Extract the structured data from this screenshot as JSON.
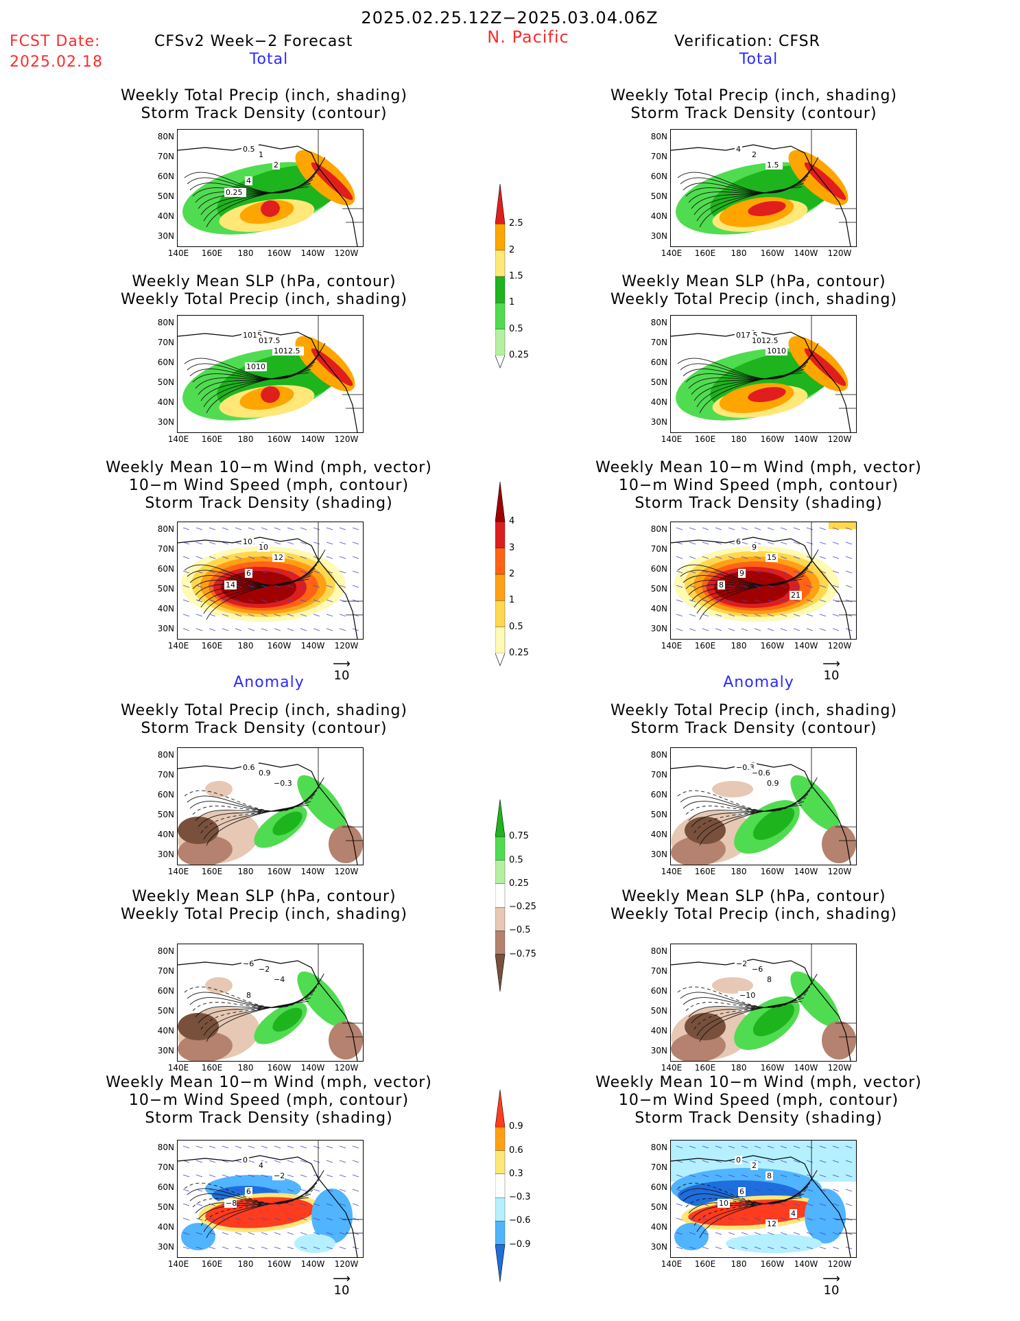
{
  "header": {
    "date_range": "2025.02.25.12Z−2025.03.04.06Z",
    "region": "N. Pacific",
    "fcst_date_label": "FCST Date:",
    "fcst_date_value": "2025.02.18",
    "left_title": "CFSv2 Week−2 Forecast",
    "right_title": "Verification: CFSR"
  },
  "sections": {
    "total": "Total",
    "anomaly": "Anomaly"
  },
  "panel_titles": {
    "precip_storm": [
      "Weekly Total Precip (inch, shading)",
      "Storm Track Density (contour)"
    ],
    "slp_precip": [
      "Weekly Mean SLP (hPa, contour)",
      "Weekly Total Precip (inch, shading)"
    ],
    "wind_storm": [
      "Weekly Mean 10−m Wind (mph, vector)",
      "10−m Wind Speed (mph, contour)",
      "Storm Track Density (shading)"
    ]
  },
  "axes": {
    "lat_labels": [
      "80N",
      "70N",
      "60N",
      "50N",
      "40N",
      "30N"
    ],
    "lon_labels": [
      "140E",
      "160E",
      "180",
      "160W",
      "140W",
      "120W"
    ]
  },
  "vector_ref": "10",
  "colorbars": {
    "precip_total": {
      "levels": [
        "0.25",
        "0.5",
        "1",
        "1.5",
        "2",
        "2.5"
      ],
      "colors": [
        "#b4f0a0",
        "#50dc50",
        "#1eb41e",
        "#ffe878",
        "#ffa500",
        "#e11e1e"
      ]
    },
    "storm_total": {
      "levels": [
        "0.25",
        "0.5",
        "1",
        "2",
        "3",
        "4"
      ],
      "colors": [
        "#fffab4",
        "#ffd850",
        "#ffa014",
        "#ff6414",
        "#dc1e1e",
        "#a00000"
      ]
    },
    "precip_anom": {
      "levels": [
        "0.75",
        "0.5",
        "0.25",
        "−0.25",
        "−0.5",
        "−0.75"
      ],
      "colors": [
        "#1eb41e",
        "#50dc50",
        "#b4f0a0",
        "#ffffff",
        "#e6c8b4",
        "#b4826e",
        "#78503c"
      ]
    },
    "storm_anom": {
      "levels": [
        "0.9",
        "0.6",
        "0.3",
        "−0.3",
        "−0.6",
        "−0.9"
      ],
      "colors": [
        "#ff3c1e",
        "#ffa014",
        "#ffe678",
        "#ffffff",
        "#b4f0ff",
        "#50b4ff",
        "#1e6edc"
      ]
    }
  },
  "contour_labels": {
    "f_precip_storm": [
      "0.5",
      "1",
      "2",
      "4",
      "0.25"
    ],
    "v_precip_storm": [
      "4",
      "2",
      "1.5"
    ],
    "f_slp_precip": [
      "1015",
      "017.5",
      "1012.5",
      "1010"
    ],
    "v_slp_precip": [
      "017.5",
      "1012.5",
      "1010"
    ],
    "f_wind_storm": [
      "10",
      "10",
      "12",
      "6",
      "14"
    ],
    "v_wind_storm": [
      "6",
      "9",
      "15",
      "9",
      "8",
      "21"
    ],
    "f_precip_anom": [
      "0.6",
      "0.9",
      "−0.3"
    ],
    "v_precip_anom": [
      "−0.3",
      "−0.6",
      "0.9"
    ],
    "f_slp_anom": [
      "−6",
      "−2",
      "−4",
      "8"
    ],
    "v_slp_anom": [
      "−2",
      "−6",
      "8",
      "−10"
    ],
    "f_wind_anom": [
      "0",
      "4",
      "−2",
      "6",
      "−8"
    ],
    "v_wind_anom": [
      "0",
      "2",
      "8",
      "6",
      "10",
      "4",
      "12"
    ]
  }
}
